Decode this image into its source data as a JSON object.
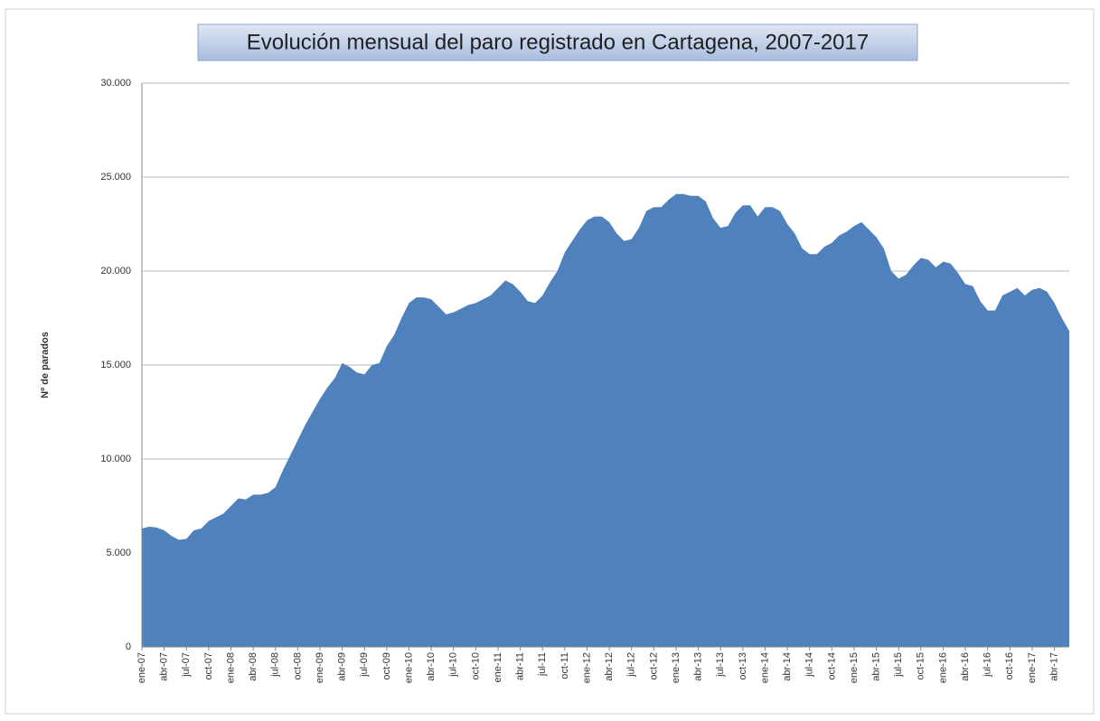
{
  "chart_data": {
    "type": "area",
    "title": "Evolución mensual del paro registrado en Cartagena, 2007-2017",
    "y_label": "Nº de parados",
    "color": "#4f81bd",
    "grid": true,
    "categories": [
      "ene-07",
      null,
      null,
      "abr-07",
      null,
      null,
      "jul-07",
      null,
      null,
      "oct-07",
      null,
      null,
      "ene-08",
      null,
      null,
      "abr-08",
      null,
      null,
      "jul-08",
      null,
      null,
      "oct-08",
      null,
      null,
      "ene-09",
      null,
      null,
      "abr-09",
      null,
      null,
      "jul-09",
      null,
      null,
      "oct-09",
      null,
      null,
      "ene-10",
      null,
      null,
      "abr-10",
      null,
      null,
      "jul-10",
      null,
      null,
      "oct-10",
      null,
      null,
      "ene-11",
      null,
      null,
      "abr-11",
      null,
      null,
      "jul-11",
      null,
      null,
      "oct-11",
      null,
      null,
      "ene-12",
      null,
      null,
      "abr-12",
      null,
      null,
      "jul-12",
      null,
      null,
      "oct-12",
      null,
      null,
      "ene-13",
      null,
      null,
      "abr-13",
      null,
      null,
      "jul-13",
      null,
      null,
      "oct-13",
      null,
      null,
      "ene-14",
      null,
      null,
      "abr-14",
      null,
      null,
      "jul-14",
      null,
      null,
      "oct-14",
      null,
      null,
      "ene-15",
      null,
      null,
      "abr-15",
      null,
      null,
      "jul-15",
      null,
      null,
      "oct-15",
      null,
      null,
      "ene-16",
      null,
      null,
      "abr-16",
      null,
      null,
      "jul-16",
      null,
      null,
      "oct-16",
      null,
      null,
      "ene-17",
      null,
      null,
      "abr-17",
      null,
      null
    ],
    "values": [
      6300,
      6400,
      6350,
      6200,
      5900,
      5700,
      5750,
      6200,
      6300,
      6700,
      6900,
      7100,
      7500,
      7900,
      7850,
      8100,
      8100,
      8200,
      8500,
      9400,
      10200,
      11000,
      11800,
      12500,
      13200,
      13800,
      14300,
      15100,
      14900,
      14600,
      14500,
      15000,
      15100,
      16000,
      16600,
      17500,
      18300,
      18600,
      18600,
      18500,
      18100,
      17700,
      17800,
      18000,
      18200,
      18300,
      18500,
      18700,
      19100,
      19500,
      19300,
      18900,
      18400,
      18300,
      18700,
      19400,
      20000,
      21000,
      21600,
      22200,
      22700,
      22900,
      22900,
      22600,
      22000,
      21600,
      21700,
      22300,
      23200,
      23400,
      23400,
      23800,
      24100,
      24100,
      24000,
      24000,
      23700,
      22800,
      22300,
      22400,
      23100,
      23500,
      23500,
      22900,
      23400,
      23400,
      23200,
      22500,
      22000,
      21200,
      20900,
      20900,
      21300,
      21500,
      21900,
      22100,
      22400,
      22600,
      22200,
      21800,
      21200,
      20000,
      19600,
      19800,
      20300,
      20700,
      20600,
      20200,
      20500,
      20400,
      19900,
      19300,
      19200,
      18400,
      17900,
      17900,
      18700,
      18900,
      19100,
      18700,
      19000,
      19100,
      18900,
      18300,
      17500,
      16800
    ],
    "ylim": [
      0,
      30000
    ],
    "yticks": [
      0,
      {
        "value": 5000,
        "label": "5.000"
      },
      {
        "value": 10000,
        "label": "10.000"
      },
      {
        "value": 15000,
        "label": "15.000"
      },
      {
        "value": 20000,
        "label": "20.000"
      },
      {
        "value": 25000,
        "label": "25.000"
      },
      {
        "value": 30000,
        "label": "30.000"
      }
    ]
  }
}
